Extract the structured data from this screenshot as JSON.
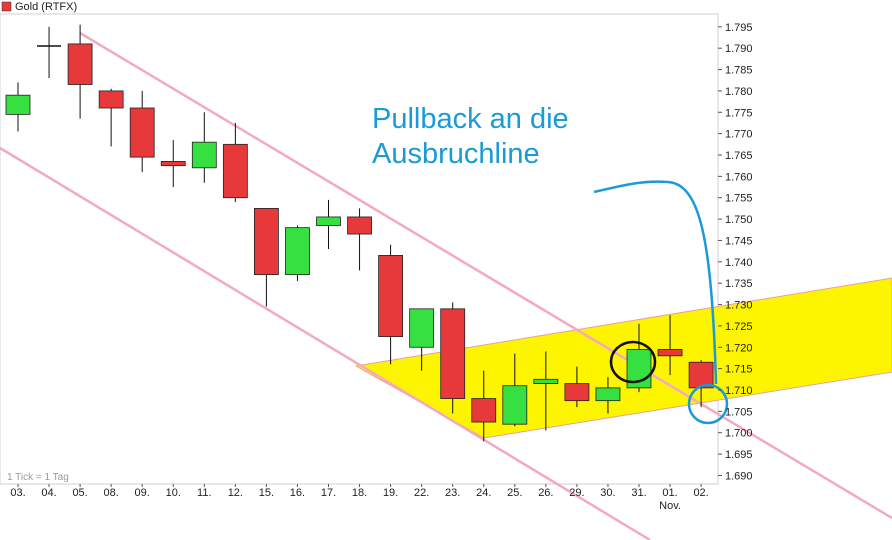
{
  "chart_data": {
    "type": "candlestick",
    "title": "Gold (RTFX)",
    "legend": {
      "label": "Gold (RTFX)",
      "position": "top-left",
      "color": "#e8393a"
    },
    "note": "1 Tick = 1 Tag",
    "annotation": {
      "lines": [
        "Pullback an die",
        "Ausbruchline"
      ],
      "color": "#1a9ad6"
    },
    "ylim": [
      1.688,
      1.798
    ],
    "y_ticks": [
      "1.795",
      "1.790",
      "1.785",
      "1.780",
      "1.775",
      "1.770",
      "1.765",
      "1.760",
      "1.755",
      "1.750",
      "1.745",
      "1.740",
      "1.735",
      "1.730",
      "1.725",
      "1.720",
      "1.715",
      "1.710",
      "1.705",
      "1.700",
      "1.695",
      "1.690"
    ],
    "categories": [
      "03.",
      "04.",
      "05.",
      "08.",
      "09.",
      "10.",
      "11.",
      "12.",
      "15.",
      "16.",
      "17.",
      "18.",
      "19.",
      "22.",
      "23.",
      "24.",
      "25.",
      "26.",
      "29.",
      "30.",
      "31.",
      "01.",
      "02."
    ],
    "x_sublabel": {
      "index": 21,
      "text": "Nov."
    },
    "up_color": "#35e040",
    "down_color": "#e8393a",
    "candles": [
      {
        "o": 1.7745,
        "h": 1.782,
        "l": 1.7705,
        "c": 1.779
      },
      {
        "o": 1.7905,
        "h": 1.795,
        "l": 1.783,
        "c": 1.7905
      },
      {
        "o": 1.791,
        "h": 1.7955,
        "l": 1.7735,
        "c": 1.7815
      },
      {
        "o": 1.78,
        "h": 1.7805,
        "l": 1.767,
        "c": 1.776
      },
      {
        "o": 1.776,
        "h": 1.78,
        "l": 1.761,
        "c": 1.7645
      },
      {
        "o": 1.7635,
        "h": 1.7685,
        "l": 1.7575,
        "c": 1.7625
      },
      {
        "o": 1.762,
        "h": 1.775,
        "l": 1.7585,
        "c": 1.768
      },
      {
        "o": 1.7675,
        "h": 1.7725,
        "l": 1.754,
        "c": 1.755
      },
      {
        "o": 1.7525,
        "h": 1.7525,
        "l": 1.7295,
        "c": 1.737
      },
      {
        "o": 1.737,
        "h": 1.7485,
        "l": 1.7355,
        "c": 1.748
      },
      {
        "o": 1.7485,
        "h": 1.7545,
        "l": 1.743,
        "c": 1.7505
      },
      {
        "o": 1.7505,
        "h": 1.7525,
        "l": 1.738,
        "c": 1.7465
      },
      {
        "o": 1.7415,
        "h": 1.744,
        "l": 1.716,
        "c": 1.7225
      },
      {
        "o": 1.72,
        "h": 1.729,
        "l": 1.7145,
        "c": 1.729
      },
      {
        "o": 1.729,
        "h": 1.7305,
        "l": 1.7045,
        "c": 1.708
      },
      {
        "o": 1.708,
        "h": 1.7145,
        "l": 1.698,
        "c": 1.7025
      },
      {
        "o": 1.702,
        "h": 1.7185,
        "l": 1.7015,
        "c": 1.711
      },
      {
        "o": 1.7115,
        "h": 1.719,
        "l": 1.7005,
        "c": 1.7125
      },
      {
        "o": 1.7115,
        "h": 1.7155,
        "l": 1.706,
        "c": 1.7075
      },
      {
        "o": 1.7075,
        "h": 1.713,
        "l": 1.7045,
        "c": 1.7105
      },
      {
        "o": 1.7105,
        "h": 1.7255,
        "l": 1.7095,
        "c": 1.7195
      },
      {
        "o": 1.7195,
        "h": 1.7275,
        "l": 1.7135,
        "c": 1.718
      },
      {
        "o": 1.7165,
        "h": 1.717,
        "l": 1.706,
        "c": 1.7105
      }
    ]
  }
}
